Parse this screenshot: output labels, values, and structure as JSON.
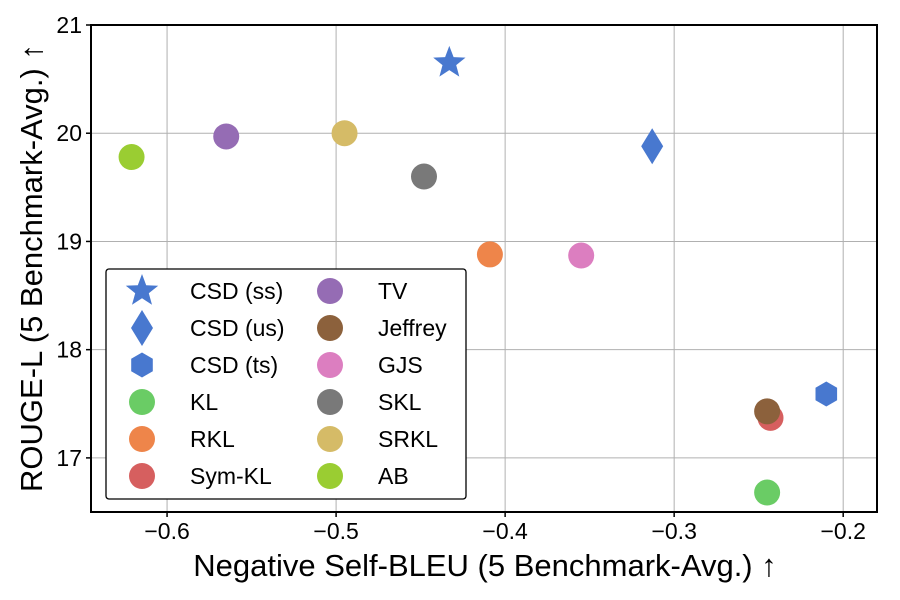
{
  "chart_data": {
    "type": "scatter",
    "xlabel": "Negative Self-BLEU (5 Benchmark-Avg.) ↑",
    "ylabel": "ROUGE-L (5 Benchmark-Avg.) ↑",
    "xlim": [
      -0.645,
      -0.18
    ],
    "ylim": [
      16.5,
      21.0
    ],
    "xticks": [
      -0.6,
      -0.5,
      -0.4,
      -0.3,
      -0.2
    ],
    "xtick_labels": [
      "−0.6",
      "−0.5",
      "−0.4",
      "−0.3",
      "−0.2"
    ],
    "yticks": [
      17,
      18,
      19,
      20,
      21
    ],
    "ytick_labels": [
      "17",
      "18",
      "19",
      "20",
      "21"
    ],
    "grid": true,
    "legend_position": "bottom-left",
    "legend_columns": 2,
    "series": [
      {
        "name": "CSD (ss)",
        "marker": "star",
        "color": "#4878cf",
        "x": -0.433,
        "y": 20.65
      },
      {
        "name": "CSD (us)",
        "marker": "diamond",
        "color": "#4878cf",
        "x": -0.313,
        "y": 19.88
      },
      {
        "name": "CSD (ts)",
        "marker": "hexagon",
        "color": "#4878cf",
        "x": -0.21,
        "y": 17.59
      },
      {
        "name": "KL",
        "marker": "circle",
        "color": "#6acc65",
        "x": -0.245,
        "y": 16.68
      },
      {
        "name": "RKL",
        "marker": "circle",
        "color": "#ee854a",
        "x": -0.409,
        "y": 18.88
      },
      {
        "name": "Sym-KL",
        "marker": "circle",
        "color": "#d65f5f",
        "x": -0.243,
        "y": 17.37
      },
      {
        "name": "TV",
        "marker": "circle",
        "color": "#956cb4",
        "x": -0.565,
        "y": 19.97
      },
      {
        "name": "Jeffrey",
        "marker": "circle",
        "color": "#8c613c",
        "x": -0.245,
        "y": 17.43
      },
      {
        "name": "GJS",
        "marker": "circle",
        "color": "#dc7ec0",
        "x": -0.355,
        "y": 18.87
      },
      {
        "name": "SKL",
        "marker": "circle",
        "color": "#797979",
        "x": -0.448,
        "y": 19.6
      },
      {
        "name": "SRKL",
        "marker": "circle",
        "color": "#d5bb67",
        "x": -0.495,
        "y": 20.0
      },
      {
        "name": "AB",
        "marker": "circle",
        "color": "#9acd32",
        "x": -0.621,
        "y": 19.78
      }
    ]
  }
}
